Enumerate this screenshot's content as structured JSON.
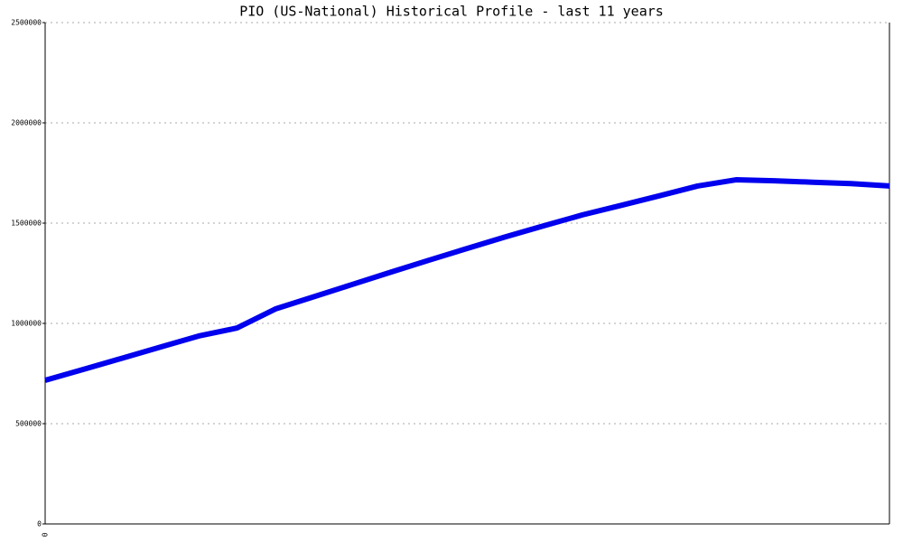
{
  "chart_data": {
    "type": "line",
    "title": "PIO (US-National) Historical Profile - last 11 years",
    "categories": [
      "0",
      null,
      null,
      null,
      null,
      null,
      null,
      null,
      null,
      null,
      null,
      null,
      null,
      null,
      null,
      null,
      null,
      null,
      null,
      null,
      null,
      null,
      null
    ],
    "series": [
      {
        "name": "PIO",
        "color": "#0000ee",
        "values": [
          716000,
          771000,
          826000,
          882000,
          937000,
          977000,
          1072000,
          1133000,
          1194000,
          1255000,
          1315000,
          1374000,
          1432000,
          1487000,
          1541000,
          1588000,
          1636000,
          1685000,
          1716000,
          1711000,
          1704000,
          1697000,
          1685000
        ]
      }
    ],
    "ylim": [
      0,
      2500000
    ],
    "yticks": [
      0,
      500000,
      1000000,
      1500000,
      2000000,
      2500000
    ],
    "grid": true
  }
}
